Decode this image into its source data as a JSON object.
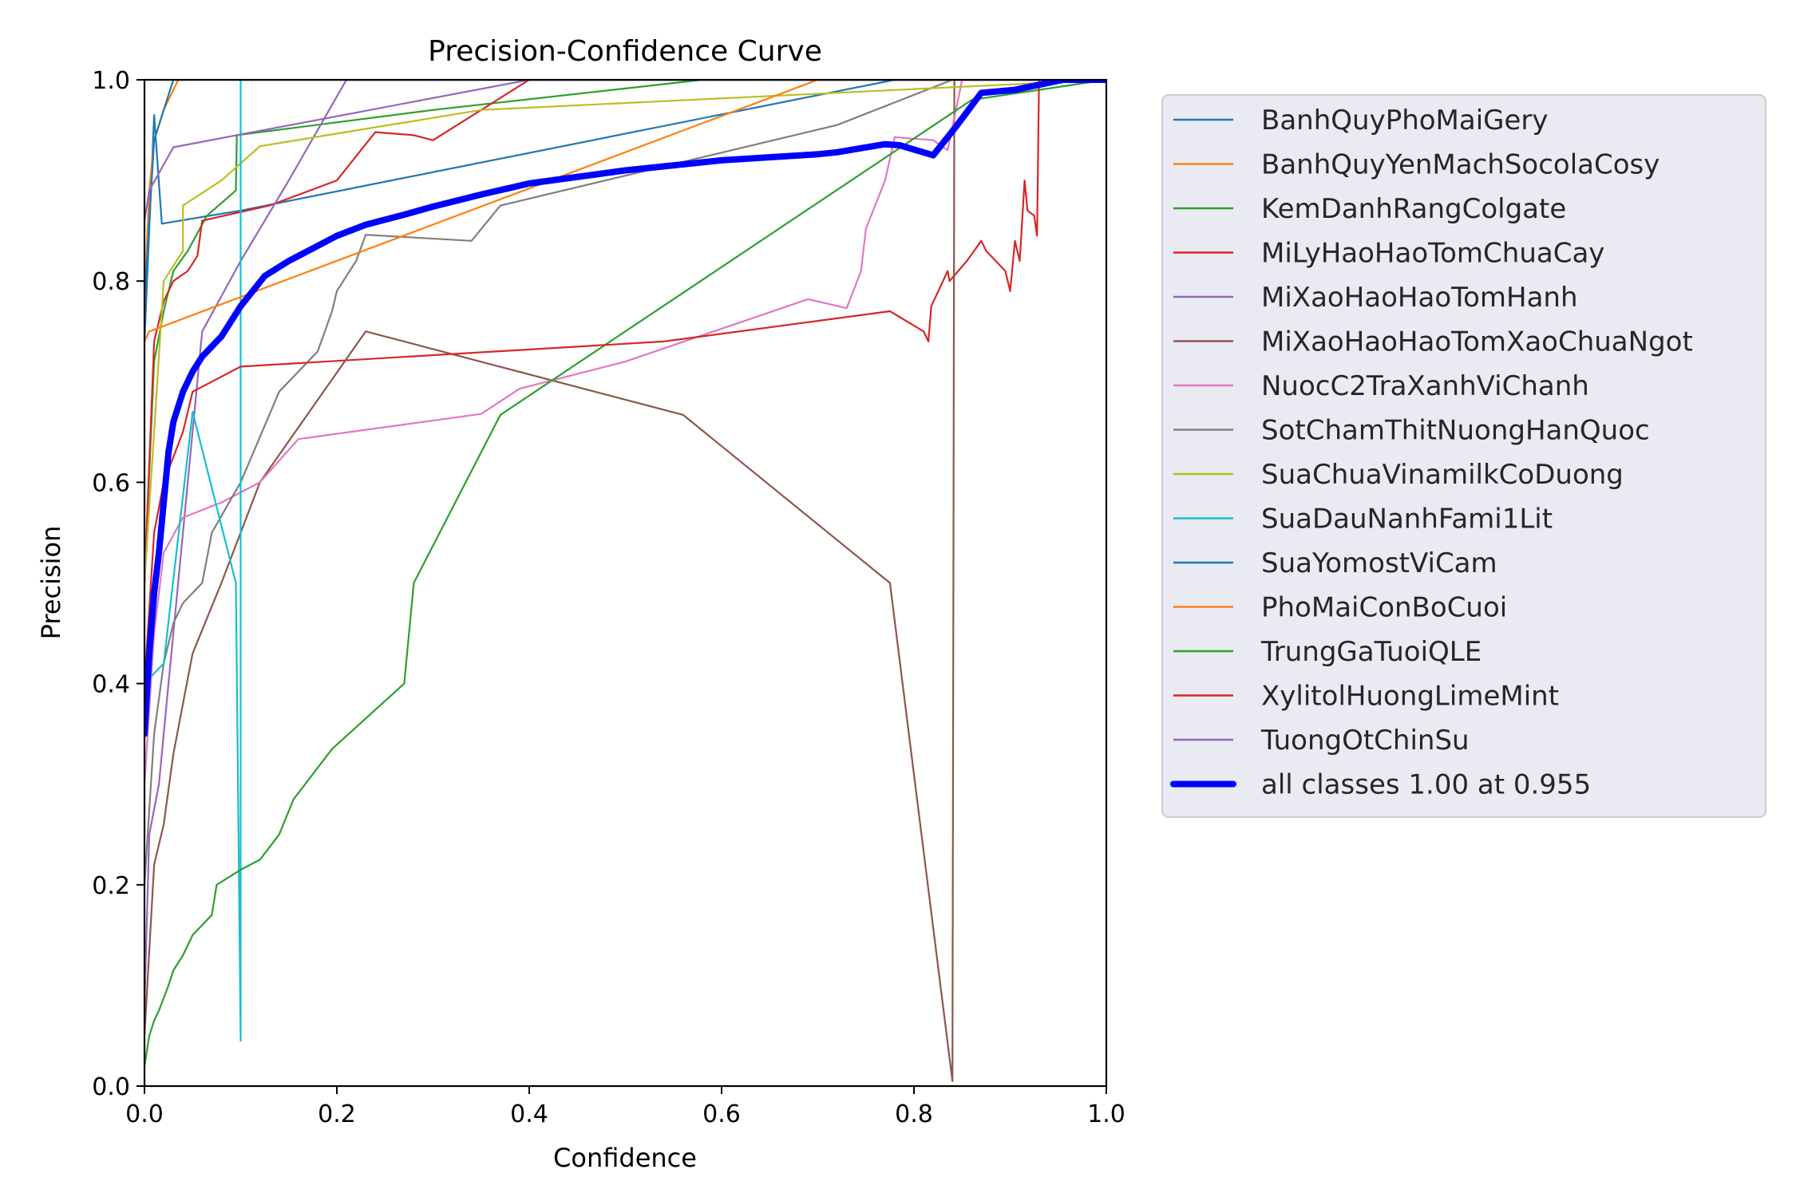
{
  "chart_data": {
    "type": "line",
    "title": "Precision-Confidence Curve",
    "xlabel": "Confidence",
    "ylabel": "Precision",
    "xlim": [
      0,
      1
    ],
    "ylim": [
      0,
      1
    ],
    "xticks": [
      "0.0",
      "0.2",
      "0.4",
      "0.6",
      "0.8",
      "1.0"
    ],
    "yticks": [
      "0.0",
      "0.2",
      "0.4",
      "0.6",
      "0.8",
      "1.0"
    ],
    "grid": false,
    "legend_position": "outside-right",
    "series": [
      {
        "name": "BanhQuyPhoMaiGery",
        "color": "#1f77b4",
        "x": [
          0.0,
          0.01,
          0.018,
          0.1,
          0.78,
          1.0
        ],
        "y": [
          0.74,
          0.965,
          0.857,
          0.87,
          1.0,
          1.0
        ]
      },
      {
        "name": "BanhQuyYenMachSocolaCosy",
        "color": "#ff7f0e",
        "x": [
          0.0,
          0.005,
          0.01,
          0.02,
          0.035,
          1.0
        ],
        "y": [
          0.78,
          0.89,
          0.94,
          0.97,
          1.0,
          1.0
        ]
      },
      {
        "name": "KemDanhRangColgate",
        "color": "#2ca02c",
        "x": [
          0.0,
          0.01,
          0.02,
          0.03,
          0.045,
          0.065,
          0.095,
          0.096,
          0.3,
          0.58,
          1.0
        ],
        "y": [
          0.5,
          0.72,
          0.77,
          0.81,
          0.83,
          0.865,
          0.89,
          0.945,
          0.97,
          1.0,
          1.0
        ]
      },
      {
        "name": "MiLyHaoHaoTomChuaCay",
        "color": "#d62728",
        "x": [
          0.0,
          0.01,
          0.02,
          0.03,
          0.045,
          0.055,
          0.06,
          0.13,
          0.2,
          0.24,
          0.28,
          0.3,
          0.4,
          1.0
        ],
        "y": [
          0.5,
          0.74,
          0.78,
          0.8,
          0.81,
          0.825,
          0.86,
          0.875,
          0.9,
          0.948,
          0.945,
          0.94,
          1.0,
          1.0
        ]
      },
      {
        "name": "MiXaoHaoHaoTomHanh",
        "color": "#9467bd",
        "x": [
          0.0,
          0.005,
          0.015,
          0.025,
          0.035,
          0.045,
          0.06,
          0.1,
          0.15,
          0.21,
          1.0
        ],
        "y": [
          0.08,
          0.25,
          0.3,
          0.4,
          0.5,
          0.6,
          0.75,
          0.82,
          0.9,
          1.0,
          1.0
        ]
      },
      {
        "name": "MiXaoHaoHaoTomXaoChuaNgot",
        "color": "#8c564b",
        "x": [
          0.0,
          0.01,
          0.02,
          0.03,
          0.04,
          0.05,
          0.08,
          0.12,
          0.23,
          0.56,
          0.775,
          0.84,
          0.842,
          1.0
        ],
        "y": [
          0.05,
          0.22,
          0.26,
          0.33,
          0.38,
          0.43,
          0.5,
          0.6,
          0.75,
          0.667,
          0.5,
          0.005,
          1.0,
          1.0
        ]
      },
      {
        "name": "NuocC2TraXanhViChanh",
        "color": "#e377c2",
        "x": [
          0.0,
          0.01,
          0.02,
          0.04,
          0.08,
          0.12,
          0.16,
          0.35,
          0.39,
          0.5,
          0.69,
          0.73,
          0.745,
          0.75,
          0.77,
          0.78,
          0.82,
          0.835,
          0.85,
          1.0
        ],
        "y": [
          0.3,
          0.45,
          0.53,
          0.565,
          0.58,
          0.6,
          0.643,
          0.668,
          0.693,
          0.72,
          0.782,
          0.773,
          0.81,
          0.852,
          0.9,
          0.943,
          0.94,
          0.93,
          1.0,
          1.0
        ]
      },
      {
        "name": "SotChamThitNuongHanQuoc",
        "color": "#7f7f7f",
        "x": [
          0.0,
          0.01,
          0.02,
          0.03,
          0.04,
          0.06,
          0.07,
          0.1,
          0.14,
          0.18,
          0.195,
          0.2,
          0.22,
          0.23,
          0.34,
          0.37,
          0.72,
          0.84,
          1.0
        ],
        "y": [
          0.2,
          0.35,
          0.42,
          0.46,
          0.48,
          0.5,
          0.55,
          0.6,
          0.69,
          0.73,
          0.77,
          0.79,
          0.82,
          0.846,
          0.84,
          0.875,
          0.955,
          1.0,
          1.0
        ]
      },
      {
        "name": "SuaChuaVinamilkCoDuong",
        "color": "#bcbd22",
        "x": [
          0.0,
          0.02,
          0.04,
          0.04,
          0.08,
          0.12,
          0.35,
          1.0
        ],
        "y": [
          0.5,
          0.8,
          0.83,
          0.875,
          0.9,
          0.934,
          0.97,
          1.0
        ]
      },
      {
        "name": "SuaDauNanhFami1Lit",
        "color": "#17becf",
        "x": [
          0.0,
          0.02,
          0.05,
          0.095,
          0.1,
          0.1,
          1.0
        ],
        "y": [
          0.4,
          0.42,
          0.67,
          0.5,
          0.045,
          1.0,
          1.0
        ]
      },
      {
        "name": "SuaYomostViCam",
        "color": "#1f77b4",
        "x": [
          0.0,
          0.01,
          0.02,
          0.03,
          1.0
        ],
        "y": [
          0.78,
          0.94,
          0.97,
          1.0,
          1.0
        ]
      },
      {
        "name": "PhoMaiConBoCuoi",
        "color": "#ff7f0e",
        "x": [
          0.0,
          0.005,
          0.7,
          1.0
        ],
        "y": [
          0.74,
          0.75,
          1.0,
          1.0
        ]
      },
      {
        "name": "TrungGaTuoiQLE",
        "color": "#2ca02c",
        "x": [
          0.0,
          0.005,
          0.01,
          0.015,
          0.025,
          0.03,
          0.04,
          0.05,
          0.06,
          0.07,
          0.075,
          0.1,
          0.12,
          0.14,
          0.155,
          0.195,
          0.27,
          0.28,
          0.37,
          0.86,
          1.0
        ],
        "y": [
          0.02,
          0.05,
          0.065,
          0.075,
          0.1,
          0.115,
          0.13,
          0.15,
          0.16,
          0.17,
          0.2,
          0.215,
          0.225,
          0.25,
          0.285,
          0.335,
          0.4,
          0.5,
          0.667,
          0.98,
          1.0
        ]
      },
      {
        "name": "XylitolHuongLimeMint",
        "color": "#d62728",
        "x": [
          0.0,
          0.01,
          0.02,
          0.04,
          0.05,
          0.07,
          0.1,
          0.54,
          0.775,
          0.81,
          0.815,
          0.818,
          0.835,
          0.837,
          0.855,
          0.87,
          0.875,
          0.885,
          0.895,
          0.9,
          0.905,
          0.91,
          0.915,
          0.918,
          0.925,
          0.928,
          0.93,
          1.0
        ],
        "y": [
          0.4,
          0.55,
          0.6,
          0.65,
          0.69,
          0.7,
          0.715,
          0.74,
          0.77,
          0.75,
          0.74,
          0.775,
          0.81,
          0.8,
          0.82,
          0.84,
          0.83,
          0.82,
          0.81,
          0.79,
          0.84,
          0.82,
          0.9,
          0.87,
          0.865,
          0.845,
          1.0,
          1.0
        ]
      },
      {
        "name": "TuongOtChinSu",
        "color": "#9467bd",
        "x": [
          0.0,
          0.005,
          0.03,
          0.4,
          1.0
        ],
        "y": [
          0.86,
          0.89,
          0.933,
          1.0,
          1.0
        ]
      },
      {
        "name": "all classes 1.00 at 0.955",
        "color": "#0000ff",
        "thick": true,
        "x": [
          0.0,
          0.005,
          0.01,
          0.015,
          0.02,
          0.025,
          0.03,
          0.04,
          0.05,
          0.06,
          0.07,
          0.08,
          0.1,
          0.125,
          0.15,
          0.2,
          0.23,
          0.27,
          0.3,
          0.35,
          0.4,
          0.5,
          0.6,
          0.7,
          0.72,
          0.745,
          0.77,
          0.785,
          0.82,
          0.845,
          0.87,
          0.905,
          0.955,
          1.0
        ],
        "y": [
          0.35,
          0.43,
          0.49,
          0.53,
          0.58,
          0.63,
          0.66,
          0.69,
          0.71,
          0.725,
          0.735,
          0.745,
          0.775,
          0.805,
          0.82,
          0.845,
          0.856,
          0.866,
          0.874,
          0.886,
          0.897,
          0.91,
          0.92,
          0.926,
          0.928,
          0.932,
          0.936,
          0.935,
          0.925,
          0.955,
          0.987,
          0.99,
          1.0,
          1.0
        ]
      }
    ]
  }
}
